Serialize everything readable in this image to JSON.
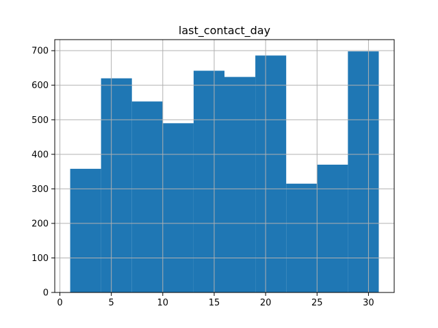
{
  "chart_data": {
    "type": "histogram",
    "title": "last_contact_day",
    "xlabel": "",
    "ylabel": "",
    "bins": [
      {
        "x0": 1,
        "x1": 4,
        "count": 358
      },
      {
        "x0": 4,
        "x1": 7,
        "count": 620
      },
      {
        "x0": 7,
        "x1": 10,
        "count": 553
      },
      {
        "x0": 10,
        "x1": 13,
        "count": 490
      },
      {
        "x0": 13,
        "x1": 16,
        "count": 642
      },
      {
        "x0": 16,
        "x1": 19,
        "count": 624
      },
      {
        "x0": 19,
        "x1": 22,
        "count": 686
      },
      {
        "x0": 22,
        "x1": 25,
        "count": 315
      },
      {
        "x0": 25,
        "x1": 28,
        "count": 370
      },
      {
        "x0": 28,
        "x1": 31,
        "count": 698
      }
    ],
    "xlim": [
      -0.5,
      32.5
    ],
    "ylim": [
      0,
      732
    ],
    "xticks": [
      0,
      5,
      10,
      15,
      20,
      25,
      30
    ],
    "yticks": [
      0,
      100,
      200,
      300,
      400,
      500,
      600,
      700
    ],
    "grid": true,
    "bar_color": "#1f77b4",
    "grid_color": "#b0b0b0"
  }
}
